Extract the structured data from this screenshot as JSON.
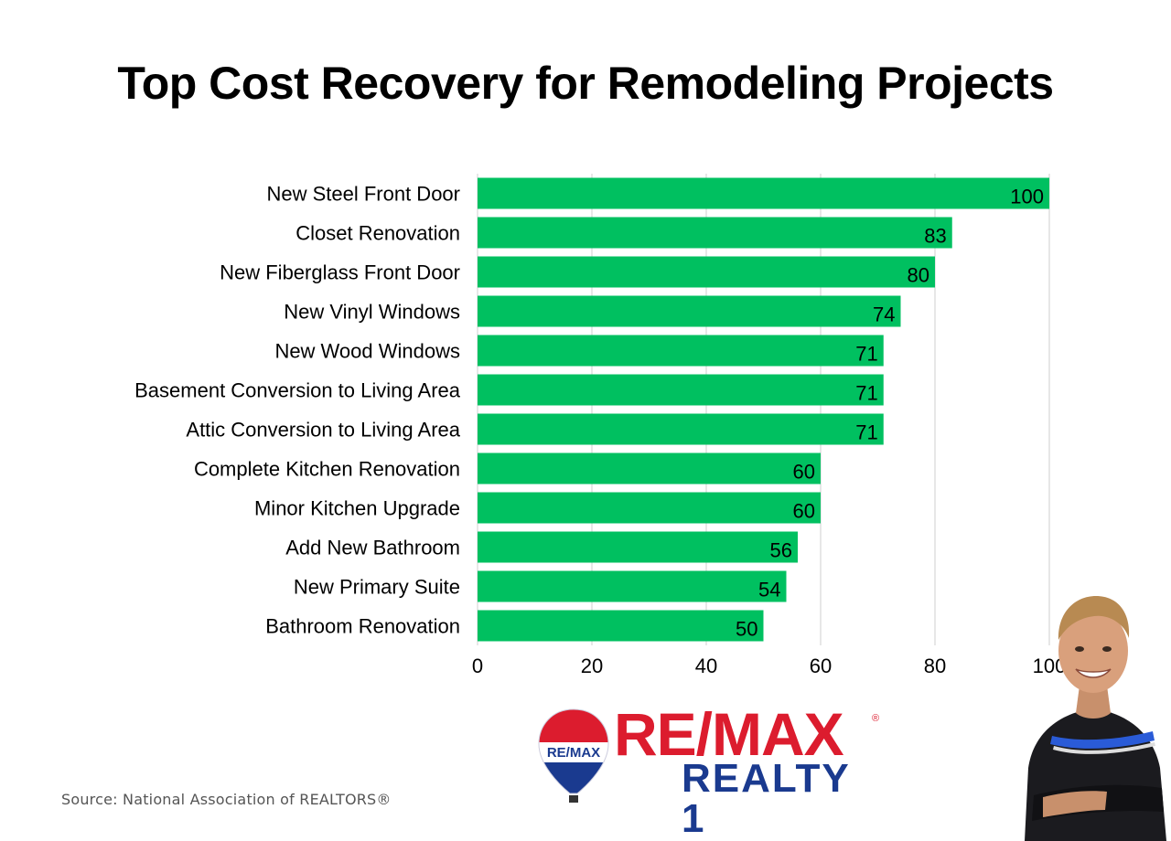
{
  "title": "Top Cost Recovery for Remodeling Projects",
  "source": "Source: National Association of REALTORS®",
  "branding": {
    "main": "RE/MAX",
    "sub": "REALTY 1",
    "balloon_text": "RE/MAX",
    "colors": {
      "red": "#dc1c2e",
      "blue": "#1a3a8f"
    }
  },
  "chart_data": {
    "type": "bar",
    "orientation": "horizontal",
    "title": "Top Cost Recovery for Remodeling Projects",
    "categories": [
      "New Steel Front Door",
      "Closet Renovation",
      "New Fiberglass Front Door",
      "New Vinyl Windows",
      "New Wood Windows",
      "Basement Conversion to Living Area",
      "Attic Conversion to Living Area",
      "Complete Kitchen Renovation",
      "Minor Kitchen Upgrade",
      "Add New Bathroom",
      "New Primary Suite",
      "Bathroom Renovation"
    ],
    "values": [
      100,
      83,
      80,
      74,
      71,
      71,
      71,
      60,
      60,
      56,
      54,
      50
    ],
    "xlim": [
      0,
      100
    ],
    "xticks": [
      0,
      20,
      40,
      60,
      80,
      100
    ],
    "xlabel": "",
    "ylabel": "",
    "bar_color": "#00c060",
    "grid": true,
    "data_labels": true
  }
}
